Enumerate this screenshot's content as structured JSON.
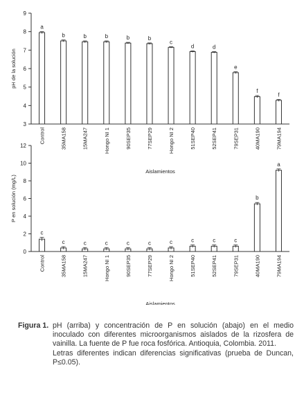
{
  "chart_data": [
    {
      "type": "bar",
      "ylabel": "pH de la solución",
      "xlabel": "Aislamientos",
      "ylim": [
        3,
        9
      ],
      "yticks": [
        3,
        4,
        5,
        6,
        7,
        8,
        9
      ],
      "categories": [
        "Control",
        "35MA158",
        "15MA247",
        "Hongo NI 1",
        "90SEP35",
        "77SEP29",
        "Hongo NI 2",
        "51SEP40",
        "52SEP41",
        "79SEP31",
        "40MA190",
        "79MA194"
      ],
      "values": [
        7.95,
        7.5,
        7.45,
        7.45,
        7.38,
        7.35,
        7.15,
        6.92,
        6.88,
        5.78,
        4.48,
        4.28
      ],
      "errors": [
        0.05,
        0.05,
        0.05,
        0.05,
        0.04,
        0.04,
        0.04,
        0.04,
        0.04,
        0.05,
        0.06,
        0.05
      ],
      "letters": [
        "a",
        "b",
        "b",
        "b",
        "b",
        "b",
        "c",
        "d",
        "d",
        "e",
        "f",
        "f"
      ]
    },
    {
      "type": "bar",
      "ylabel": "P en solución  (mg/L)",
      "xlabel": "Aislamientos",
      "ylim": [
        0,
        12
      ],
      "yticks": [
        0,
        2,
        4,
        6,
        8,
        10,
        12
      ],
      "categories": [
        "Control",
        "35MA158",
        "15MA247",
        "Hongo NI 1",
        "90SEP35",
        "77SEP29",
        "Hongo NI 2",
        "51SEP40",
        "52SEP41",
        "79SEP31",
        "40MA190",
        "79MA194"
      ],
      "values": [
        1.4,
        0.4,
        0.3,
        0.3,
        0.3,
        0.3,
        0.4,
        0.6,
        0.6,
        0.6,
        5.4,
        9.2
      ],
      "errors": [
        0.2,
        0.15,
        0.15,
        0.15,
        0.15,
        0.15,
        0.15,
        0.15,
        0.15,
        0.15,
        0.15,
        0.15
      ],
      "letters": [
        "c",
        "c",
        "c",
        "c",
        "c",
        "c",
        "c",
        "c",
        "c",
        "c",
        "b",
        "a"
      ]
    }
  ],
  "caption": {
    "label": "Figura 1.",
    "text": "pH (arriba) y concentración de P en solución (abajo) en el medio inoculado con diferentes microorganismos aislados de la rizosfera de vainilla. La fuente de P fue roca fosfórica. Antioquia, Colombia. 2011.",
    "note": "Letras diferentes indican diferencias significativas (prueba de Duncan, P≤0.05)."
  }
}
